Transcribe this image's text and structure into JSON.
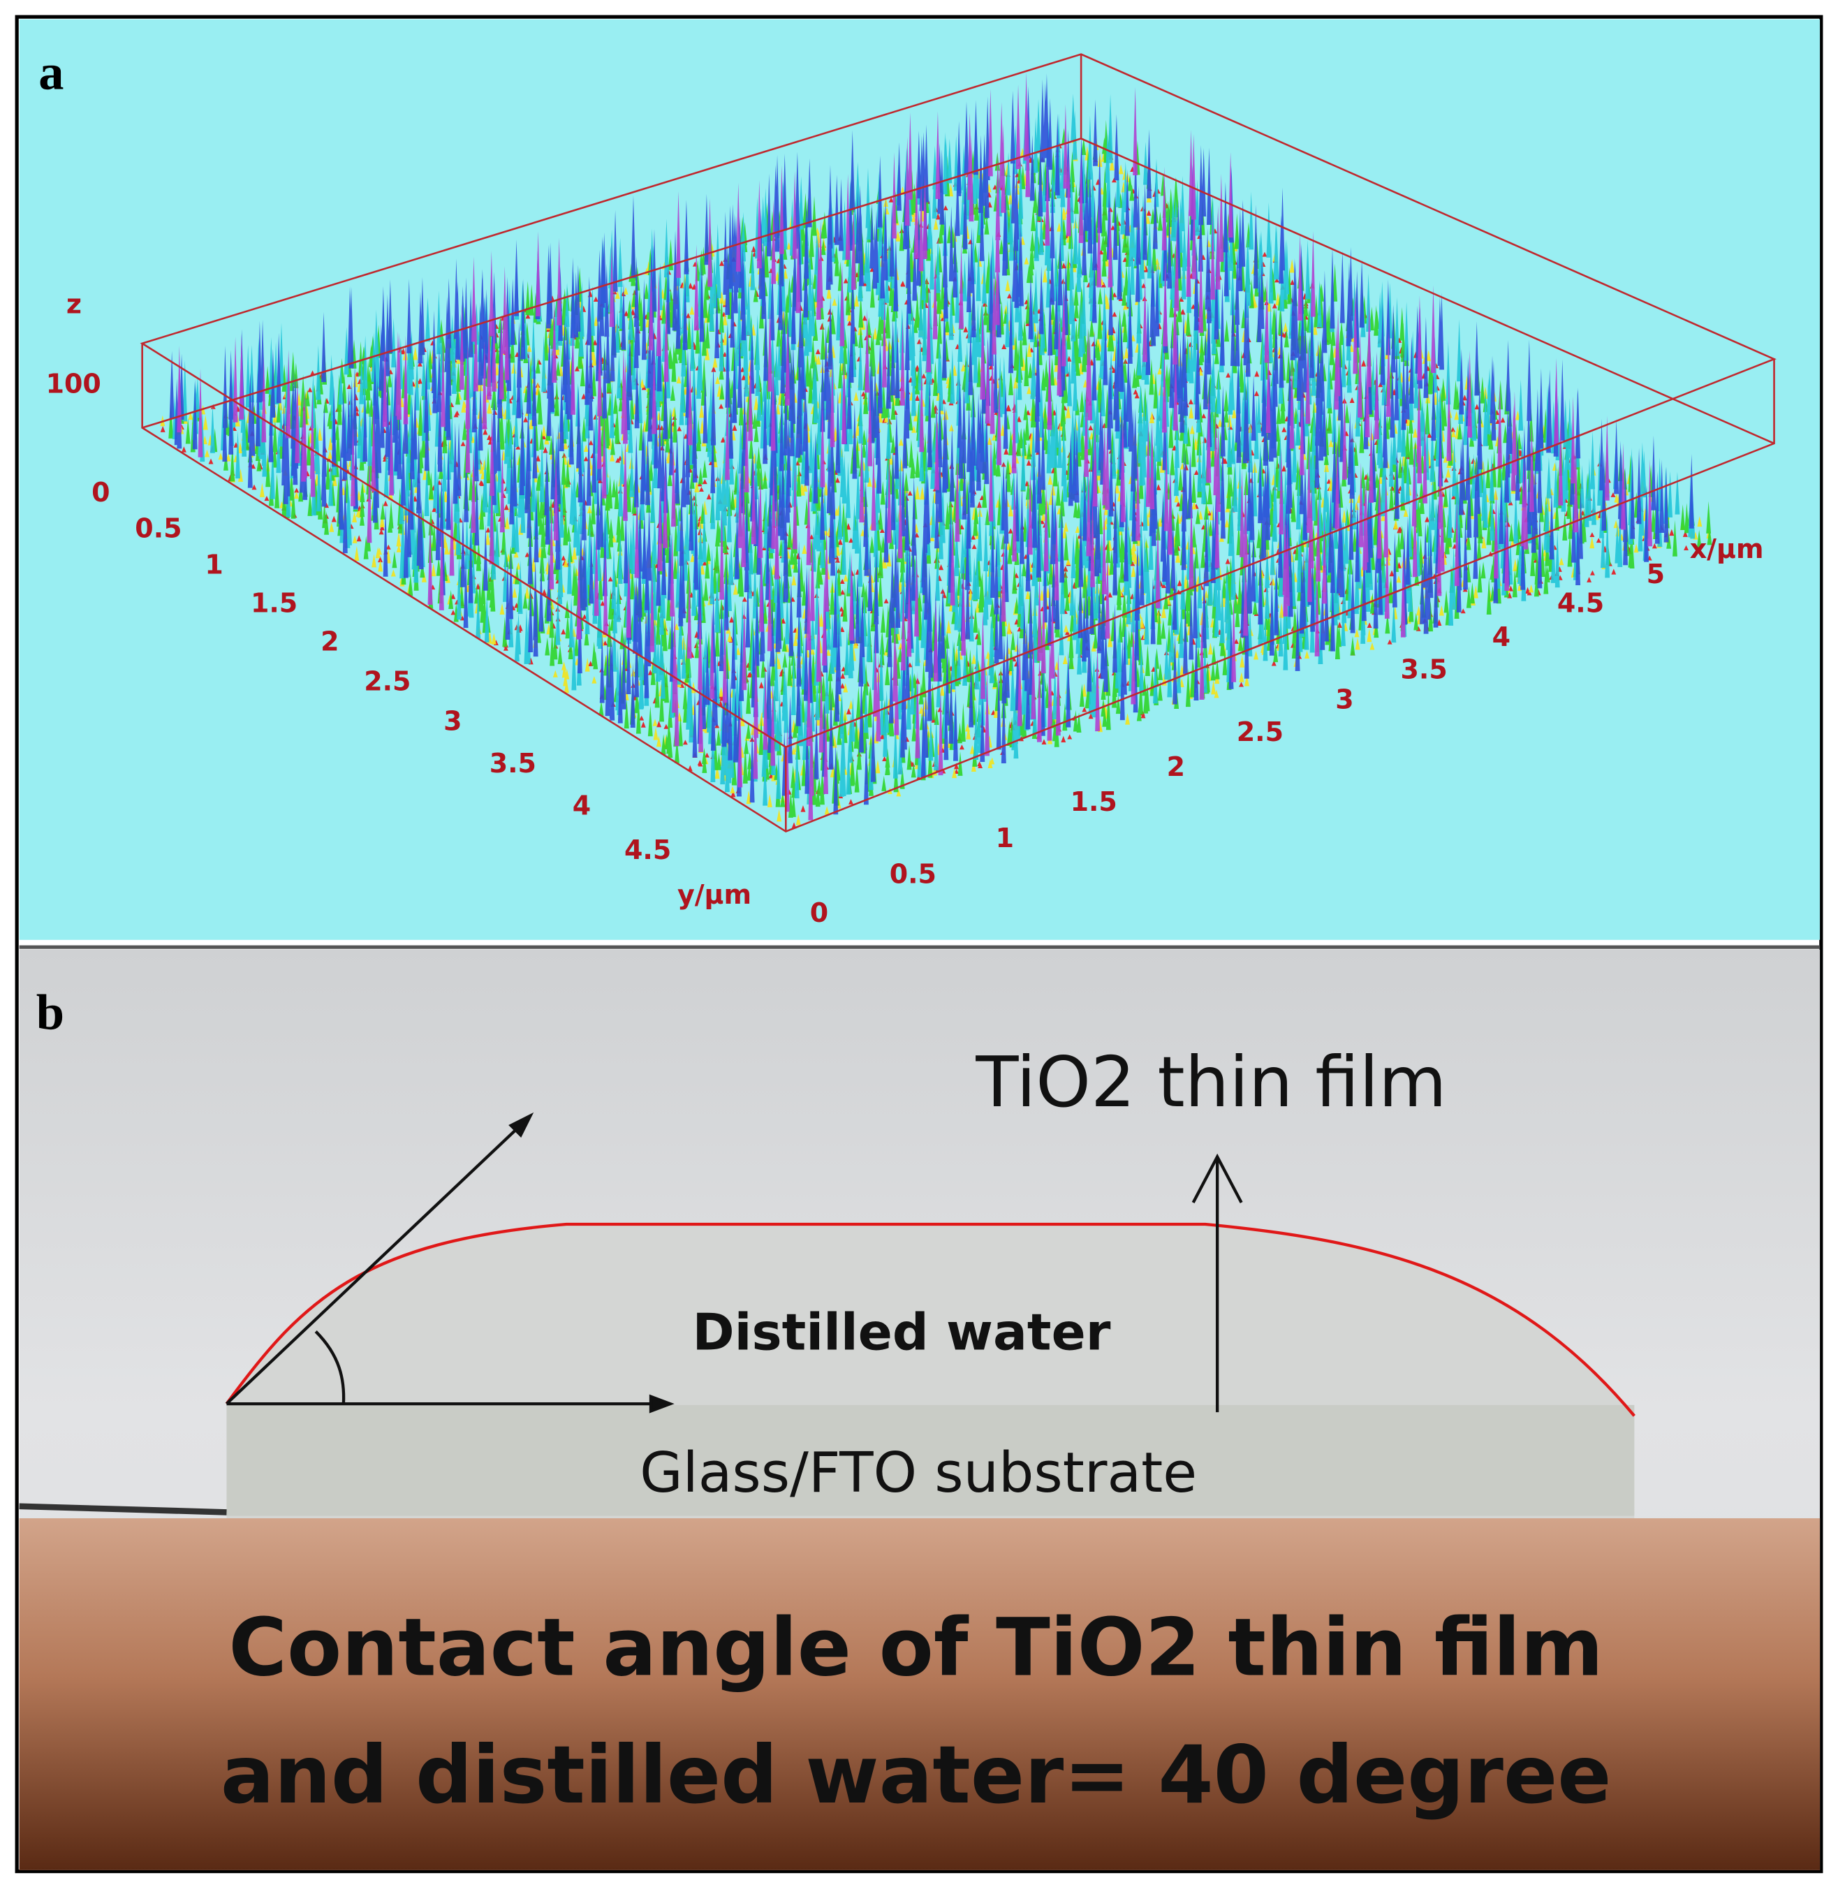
{
  "panel_a": {
    "label": "a",
    "z_axis": {
      "title": "z",
      "ticks": [
        "100",
        "0"
      ]
    },
    "y_axis": {
      "title": "y/μm",
      "ticks": [
        "0.5",
        "1",
        "1.5",
        "2",
        "2.5",
        "3",
        "3.5",
        "4",
        "4.5"
      ]
    },
    "x_axis": {
      "title": "x/μm",
      "ticks": [
        "0",
        "0.5",
        "1",
        "1.5",
        "2",
        "2.5",
        "3",
        "3.5",
        "4",
        "4.5",
        "5"
      ]
    }
  },
  "panel_b": {
    "label": "b",
    "film_label": "TiO2 thin film",
    "water_label": "Distilled water",
    "substrate_label": "Glass/FTO substrate",
    "caption": [
      "Contact angle of TiO2 thin film",
      "and distilled water= 40 degree"
    ]
  }
}
